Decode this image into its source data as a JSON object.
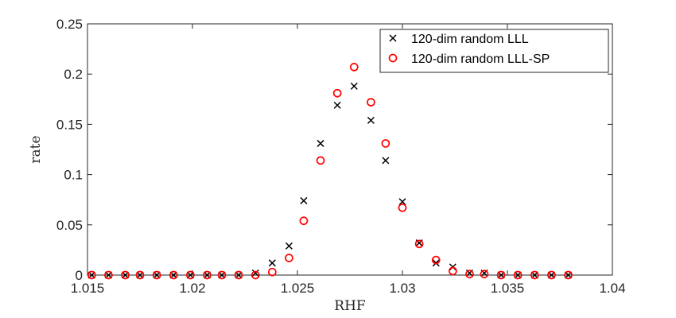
{
  "chart_data": {
    "type": "scatter",
    "title": "",
    "xlabel": "RHF",
    "ylabel": "rate",
    "xlim": [
      1.015,
      1.04
    ],
    "ylim": [
      0,
      0.25
    ],
    "xticks": [
      "1.015",
      "1.02",
      "1.025",
      "1.03",
      "1.035",
      "1.04"
    ],
    "xtick_values": [
      1.015,
      1.02,
      1.025,
      1.03,
      1.035,
      1.04
    ],
    "yticks": [
      "0",
      "0.05",
      "0.1",
      "0.15",
      "0.2",
      "0.25"
    ],
    "ytick_values": [
      0,
      0.05,
      0.1,
      0.15,
      0.2,
      0.25
    ],
    "grid": false,
    "legend_position": "top-right",
    "x": [
      1.0152,
      1.016,
      1.0168,
      1.0175,
      1.0183,
      1.0191,
      1.0199,
      1.0207,
      1.0214,
      1.0222,
      1.023,
      1.0238,
      1.0246,
      1.0253,
      1.0261,
      1.0269,
      1.0277,
      1.0285,
      1.0292,
      1.03,
      1.0308,
      1.0316,
      1.0324,
      1.0332,
      1.0339,
      1.0347,
      1.0355,
      1.0363,
      1.0371,
      1.0379
    ],
    "series": [
      {
        "name": "120-dim random LLL",
        "marker": "x",
        "color": "#000000",
        "values": [
          0,
          0,
          0,
          0,
          0,
          0,
          0,
          0,
          0,
          0,
          0.002,
          0.012,
          0.029,
          0.074,
          0.131,
          0.169,
          0.188,
          0.154,
          0.114,
          0.073,
          0.032,
          0.012,
          0.008,
          0.002,
          0.002,
          0,
          0,
          0,
          0,
          0
        ]
      },
      {
        "name": "120-dim random LLL-SP",
        "marker": "o",
        "color": "#ff0000",
        "values": [
          0,
          0,
          0,
          0,
          0,
          0,
          0,
          0,
          0,
          0,
          0,
          0.003,
          0.017,
          0.054,
          0.114,
          0.181,
          0.207,
          0.172,
          0.131,
          0.067,
          0.031,
          0.015,
          0.004,
          0.001,
          0.001,
          0,
          0,
          0,
          0,
          0
        ]
      }
    ]
  }
}
